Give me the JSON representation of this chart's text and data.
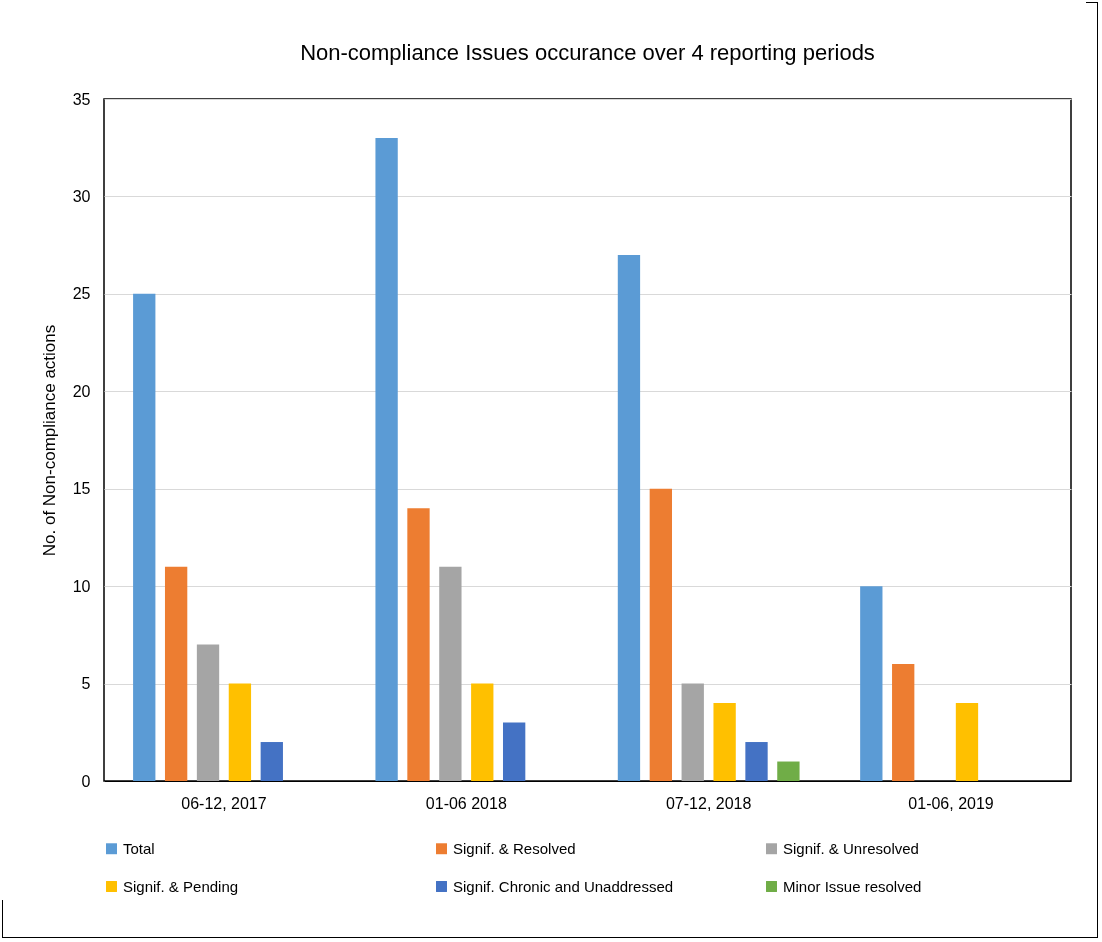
{
  "chart_data": {
    "type": "bar",
    "title": "Non-compliance Issues occurance over 4 reporting periods",
    "ylabel": "No. of Non-compliance actions",
    "categories": [
      "06-12, 2017",
      "01-06 2018",
      "07-12, 2018",
      "01-06, 2019"
    ],
    "series": [
      {
        "name": "Total",
        "color": "#5b9bd5",
        "values": [
          25,
          33,
          27,
          10
        ]
      },
      {
        "name": "Signif. & Resolved",
        "color": "#ed7d31",
        "values": [
          11,
          14,
          15,
          6
        ]
      },
      {
        "name": "Signif. & Unresolved",
        "color": "#a5a5a5",
        "values": [
          7,
          11,
          5,
          null
        ]
      },
      {
        "name": "Signif. & Pending",
        "color": "#ffc000",
        "values": [
          5,
          5,
          4,
          4
        ]
      },
      {
        "name": "Signif. Chronic and Unaddressed",
        "color": "#4472c4",
        "values": [
          2,
          3,
          2,
          null
        ]
      },
      {
        "name": "Minor Issue resolved",
        "color": "#70ad47",
        "values": [
          null,
          null,
          1,
          null
        ]
      }
    ],
    "ylim": [
      0,
      35
    ],
    "yticks": [
      0,
      5,
      10,
      15,
      20,
      25,
      30,
      35
    ],
    "grid": "y",
    "legend": "bottom"
  }
}
